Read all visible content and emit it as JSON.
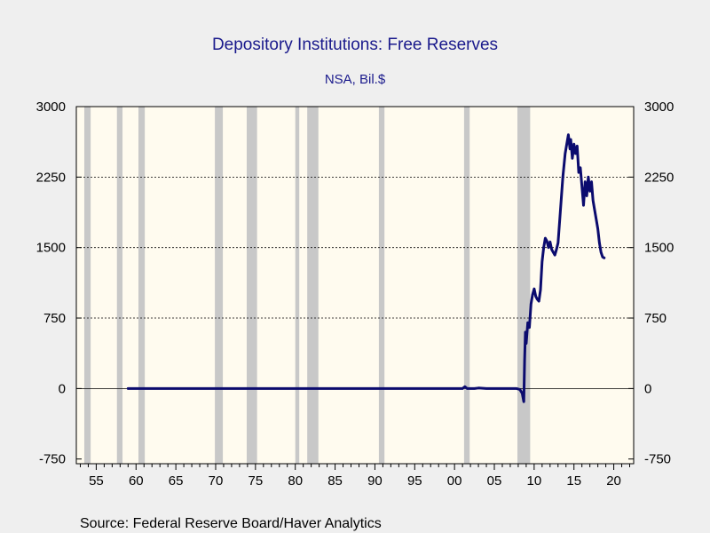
{
  "chart_data": {
    "type": "line",
    "title": "Depository Institutions: Free Reserves",
    "subtitle": "NSA, Bil.$",
    "source": "Source:  Federal Reserve Board/Haver Analytics",
    "xlabel": "",
    "ylabel": "",
    "xlim": [
      1952.5,
      2022.5
    ],
    "ylim": [
      -800,
      3000
    ],
    "y_ticks": [
      3000,
      2250,
      1500,
      750,
      0,
      -750
    ],
    "x_ticks": [
      {
        "year": 1955,
        "label": "55"
      },
      {
        "year": 1960,
        "label": "60"
      },
      {
        "year": 1965,
        "label": "65"
      },
      {
        "year": 1970,
        "label": "70"
      },
      {
        "year": 1975,
        "label": "75"
      },
      {
        "year": 1980,
        "label": "80"
      },
      {
        "year": 1985,
        "label": "85"
      },
      {
        "year": 1990,
        "label": "90"
      },
      {
        "year": 1995,
        "label": "95"
      },
      {
        "year": 2000,
        "label": "00"
      },
      {
        "year": 2005,
        "label": "05"
      },
      {
        "year": 2010,
        "label": "10"
      },
      {
        "year": 2015,
        "label": "15"
      },
      {
        "year": 2020,
        "label": "20"
      }
    ],
    "gridlines": [
      2250,
      1500,
      750
    ],
    "zero_line": true,
    "recessions": [
      [
        1953.5,
        1954.3
      ],
      [
        1957.6,
        1958.3
      ],
      [
        1960.3,
        1961.1
      ],
      [
        1969.9,
        1970.9
      ],
      [
        1973.9,
        1975.2
      ],
      [
        1980.0,
        1980.5
      ],
      [
        1981.5,
        1982.9
      ],
      [
        1990.5,
        1991.2
      ],
      [
        2001.2,
        2001.9
      ],
      [
        2007.9,
        2009.5
      ]
    ],
    "series": [
      {
        "color": "#0b0b6e",
        "points": [
          [
            1959.0,
            0
          ],
          [
            1965.0,
            0
          ],
          [
            1970.0,
            0
          ],
          [
            1975.0,
            0
          ],
          [
            1980.0,
            0
          ],
          [
            1985.0,
            0
          ],
          [
            1990.0,
            0
          ],
          [
            1995.0,
            0
          ],
          [
            2000.0,
            0
          ],
          [
            2001.0,
            0
          ],
          [
            2001.3,
            20
          ],
          [
            2001.6,
            0
          ],
          [
            2002.5,
            0
          ],
          [
            2003.0,
            5
          ],
          [
            2004.0,
            0
          ],
          [
            2006.0,
            0
          ],
          [
            2007.8,
            0
          ],
          [
            2008.2,
            -10
          ],
          [
            2008.5,
            -50
          ],
          [
            2008.7,
            -140
          ],
          [
            2008.8,
            300
          ],
          [
            2008.9,
            600
          ],
          [
            2009.0,
            480
          ],
          [
            2009.2,
            700
          ],
          [
            2009.4,
            650
          ],
          [
            2009.6,
            900
          ],
          [
            2009.8,
            1000
          ],
          [
            2010.0,
            1060
          ],
          [
            2010.2,
            980
          ],
          [
            2010.4,
            950
          ],
          [
            2010.6,
            930
          ],
          [
            2010.8,
            1050
          ],
          [
            2011.0,
            1350
          ],
          [
            2011.2,
            1500
          ],
          [
            2011.4,
            1600
          ],
          [
            2011.6,
            1570
          ],
          [
            2011.8,
            1500
          ],
          [
            2012.0,
            1560
          ],
          [
            2012.2,
            1480
          ],
          [
            2012.4,
            1450
          ],
          [
            2012.6,
            1420
          ],
          [
            2012.8,
            1480
          ],
          [
            2013.0,
            1550
          ],
          [
            2013.3,
            1900
          ],
          [
            2013.6,
            2250
          ],
          [
            2013.9,
            2500
          ],
          [
            2014.1,
            2600
          ],
          [
            2014.3,
            2700
          ],
          [
            2014.5,
            2550
          ],
          [
            2014.6,
            2650
          ],
          [
            2014.8,
            2450
          ],
          [
            2015.0,
            2600
          ],
          [
            2015.2,
            2500
          ],
          [
            2015.4,
            2580
          ],
          [
            2015.6,
            2300
          ],
          [
            2015.8,
            2350
          ],
          [
            2016.0,
            2150
          ],
          [
            2016.2,
            1950
          ],
          [
            2016.4,
            2200
          ],
          [
            2016.6,
            2050
          ],
          [
            2016.8,
            2250
          ],
          [
            2017.0,
            2100
          ],
          [
            2017.2,
            2200
          ],
          [
            2017.4,
            2000
          ],
          [
            2017.6,
            1900
          ],
          [
            2017.8,
            1800
          ],
          [
            2018.0,
            1700
          ],
          [
            2018.2,
            1550
          ],
          [
            2018.4,
            1450
          ],
          [
            2018.6,
            1400
          ],
          [
            2018.8,
            1390
          ]
        ]
      }
    ]
  }
}
